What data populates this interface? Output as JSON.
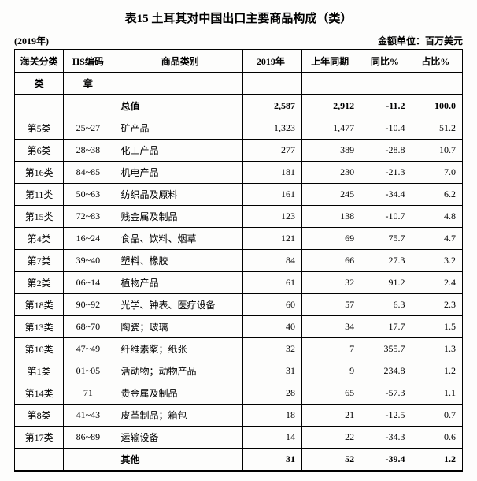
{
  "title": "表15  土耳其对中国出口主要商品构成（类）",
  "meta": {
    "left": "(2019年)",
    "right": "金额单位：百万美元"
  },
  "header1": [
    "海关分类",
    "HS编码",
    "商品类别",
    "2019年",
    "上年同期",
    "同比%",
    "占比%"
  ],
  "header2": [
    "类",
    "章",
    "",
    "",
    "",
    "",
    ""
  ],
  "total": [
    "",
    "",
    "总值",
    "2,587",
    "2,912",
    "-11.2",
    "100.0"
  ],
  "rows": [
    [
      "第5类",
      "25~27",
      "矿产品",
      "1,323",
      "1,477",
      "-10.4",
      "51.2"
    ],
    [
      "第6类",
      "28~38",
      "化工产品",
      "277",
      "389",
      "-28.8",
      "10.7"
    ],
    [
      "第16类",
      "84~85",
      "机电产品",
      "181",
      "230",
      "-21.3",
      "7.0"
    ],
    [
      "第11类",
      "50~63",
      "纺织品及原料",
      "161",
      "245",
      "-34.4",
      "6.2"
    ],
    [
      "第15类",
      "72~83",
      "贱金属及制品",
      "123",
      "138",
      "-10.7",
      "4.8"
    ],
    [
      "第4类",
      "16~24",
      "食品、饮料、烟草",
      "121",
      "69",
      "75.7",
      "4.7"
    ],
    [
      "第7类",
      "39~40",
      "塑料、橡胶",
      "84",
      "66",
      "27.3",
      "3.2"
    ],
    [
      "第2类",
      "06~14",
      "植物产品",
      "61",
      "32",
      "91.2",
      "2.4"
    ],
    [
      "第18类",
      "90~92",
      "光学、钟表、医疗设备",
      "60",
      "57",
      "6.3",
      "2.3"
    ],
    [
      "第13类",
      "68~70",
      "陶瓷；玻璃",
      "40",
      "34",
      "17.7",
      "1.5"
    ],
    [
      "第10类",
      "47~49",
      "纤维素浆；纸张",
      "32",
      "7",
      "355.7",
      "1.3"
    ],
    [
      "第1类",
      "01~05",
      "活动物；动物产品",
      "31",
      "9",
      "234.8",
      "1.2"
    ],
    [
      "第14类",
      "71",
      "贵金属及制品",
      "28",
      "65",
      "-57.3",
      "1.1"
    ],
    [
      "第8类",
      "41~43",
      "皮革制品；箱包",
      "18",
      "21",
      "-12.5",
      "0.7"
    ],
    [
      "第17类",
      "86~89",
      "运输设备",
      "14",
      "22",
      "-34.3",
      "0.6"
    ]
  ],
  "other": [
    "",
    "",
    "其他",
    "31",
    "52",
    "-39.4",
    "1.2"
  ]
}
